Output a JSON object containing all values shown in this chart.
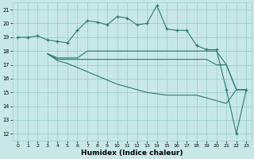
{
  "xlabel": "Humidex (Indice chaleur)",
  "xlim": [
    -0.5,
    23.5
  ],
  "ylim": [
    11.5,
    21.5
  ],
  "yticks": [
    12,
    13,
    14,
    15,
    16,
    17,
    18,
    19,
    20,
    21
  ],
  "xticks": [
    0,
    1,
    2,
    3,
    4,
    5,
    6,
    7,
    8,
    9,
    10,
    11,
    12,
    13,
    14,
    15,
    16,
    17,
    18,
    19,
    20,
    21,
    22,
    23
  ],
  "background_color": "#c8e8e8",
  "grid_color": "#9ecece",
  "line_color": "#2a7a70",
  "series": [
    {
      "x": [
        0,
        1,
        2,
        3,
        4,
        5,
        6,
        7,
        8,
        9,
        10,
        11,
        12,
        13,
        14,
        15,
        16,
        17,
        18,
        19,
        20,
        21,
        22,
        23
      ],
      "y": [
        19.0,
        19.0,
        19.1,
        18.8,
        18.7,
        18.6,
        19.5,
        20.2,
        20.1,
        19.9,
        20.5,
        20.4,
        19.9,
        20.0,
        21.3,
        19.6,
        19.5,
        19.5,
        18.4,
        18.1,
        18.1,
        15.2,
        12.0,
        15.2
      ],
      "has_markers": true
    },
    {
      "x": [
        3,
        4,
        5,
        6,
        7,
        8,
        9,
        10,
        11,
        12,
        13,
        14,
        15,
        16,
        17,
        18,
        19,
        20,
        21,
        22,
        23
      ],
      "y": [
        17.8,
        17.5,
        17.5,
        17.5,
        18.0,
        18.0,
        18.0,
        18.0,
        18.0,
        18.0,
        18.0,
        18.0,
        18.0,
        18.0,
        18.0,
        18.0,
        18.0,
        18.0,
        17.0,
        15.2,
        15.2
      ],
      "has_markers": false
    },
    {
      "x": [
        3,
        4,
        5,
        6,
        7,
        8,
        9,
        10,
        11,
        12,
        13,
        14,
        15,
        16,
        17,
        18,
        19,
        20,
        21,
        22,
        23
      ],
      "y": [
        17.8,
        17.4,
        17.4,
        17.4,
        17.4,
        17.4,
        17.4,
        17.4,
        17.4,
        17.4,
        17.4,
        17.4,
        17.4,
        17.4,
        17.4,
        17.4,
        17.4,
        17.0,
        17.0,
        15.2,
        15.2
      ],
      "has_markers": false
    },
    {
      "x": [
        3,
        4,
        5,
        6,
        7,
        8,
        9,
        10,
        11,
        12,
        13,
        14,
        15,
        16,
        17,
        18,
        19,
        20,
        21,
        22,
        23
      ],
      "y": [
        17.8,
        17.3,
        17.1,
        16.8,
        16.5,
        16.2,
        15.9,
        15.6,
        15.4,
        15.2,
        15.0,
        14.9,
        14.8,
        14.8,
        14.8,
        14.8,
        14.6,
        14.4,
        14.2,
        15.2,
        15.2
      ],
      "has_markers": false
    }
  ]
}
